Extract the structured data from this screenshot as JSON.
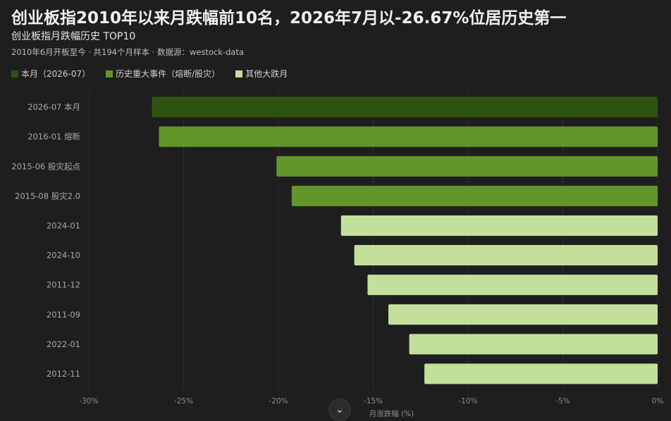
{
  "page": {
    "title": "创业板指2010年以来月跌幅前10名，2026年7月以-26.67%位居历史第一",
    "subtitle": "创业板指月跌幅历史 TOP10",
    "meta": "2010年6月开板至今 · 共194个月样本 · 数据源：westock-data"
  },
  "legend": [
    {
      "label": "本月（2026-07）",
      "color": "#2e5212"
    },
    {
      "label": "历史重大事件（熔断/股灾）",
      "color": "#62962a"
    },
    {
      "label": "其他大跌月",
      "color": "#c3df9c"
    }
  ],
  "scroll_button": {
    "icon": "chevron-down-icon",
    "glyph": "⌄"
  },
  "chart_data": {
    "type": "bar",
    "orientation": "horizontal",
    "xlabel": "月涨跌幅 (%)",
    "xlim": [
      -30,
      0
    ],
    "xticks": [
      -30,
      -25,
      -20,
      -15,
      -10,
      -5,
      0
    ],
    "tick_labels": [
      "-30%",
      "-25%",
      "-20%",
      "-15%",
      "-10%",
      "-5%",
      "0%"
    ],
    "grid": "vertical",
    "categories": [
      "2026-07 本月",
      "2016-01 熔断",
      "2015-06 股灾起点",
      "2015-08 股灾2.0",
      "2024-01",
      "2024-10",
      "2011-12",
      "2011-09",
      "2022-01",
      "2012-11"
    ],
    "values": [
      -26.67,
      -26.3,
      -20.1,
      -19.3,
      -16.7,
      -16.0,
      -15.3,
      -14.2,
      -13.1,
      -12.3
    ],
    "groups": [
      0,
      1,
      1,
      1,
      2,
      2,
      2,
      2,
      2,
      2
    ]
  }
}
